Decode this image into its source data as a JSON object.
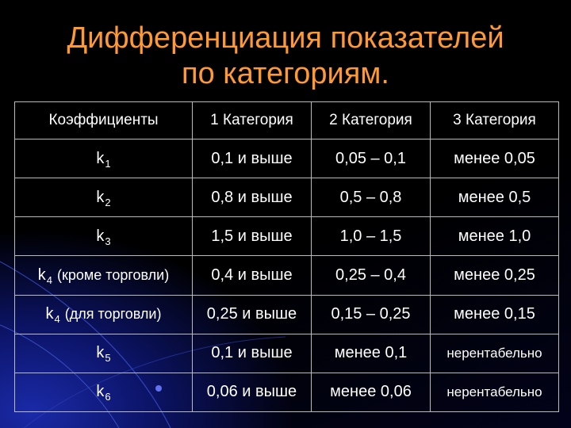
{
  "slide": {
    "title_line1": "Дифференциация показателей",
    "title_line2": "по категориям."
  },
  "table": {
    "headers": [
      "Коэффициенты",
      "1 Категория",
      "2 Категория",
      "3 Категория"
    ],
    "rows": [
      {
        "coef": "k",
        "sub": "1",
        "note": "",
        "cat1": "0,1 и выше",
        "cat2": "0,05 – 0,1",
        "cat3": "менее 0,05"
      },
      {
        "coef": "k",
        "sub": "2",
        "note": "",
        "cat1": "0,8 и выше",
        "cat2": "0,5 – 0,8",
        "cat3": "менее 0,5"
      },
      {
        "coef": "k",
        "sub": "3",
        "note": "",
        "cat1": "1,5 и выше",
        "cat2": "1,0 – 1,5",
        "cat3": "менее 1,0"
      },
      {
        "coef": "k",
        "sub": "4",
        "note": "(кроме торговли)",
        "cat1": "0,4 и выше",
        "cat2": "0,25 – 0,4",
        "cat3": "менее 0,25"
      },
      {
        "coef": "k",
        "sub": "4",
        "note": "(для торговли)",
        "cat1": "0,25 и выше",
        "cat2": "0,15 – 0,25",
        "cat3": "менее 0,15"
      },
      {
        "coef": "k",
        "sub": "5",
        "note": "",
        "cat1": "0,1 и выше",
        "cat2": "менее 0,1",
        "cat3": "нерентабельно"
      },
      {
        "coef": "k",
        "sub": "6",
        "note": "",
        "cat1": "0,06 и выше",
        "cat2": "менее 0,06",
        "cat3": "нерентабельно"
      }
    ]
  },
  "colors": {
    "background": "#000000",
    "title": "#ff9933",
    "text": "#ffffff",
    "grid_lines": "#bbbbbb",
    "accent_blue": "#1a2aa8"
  }
}
